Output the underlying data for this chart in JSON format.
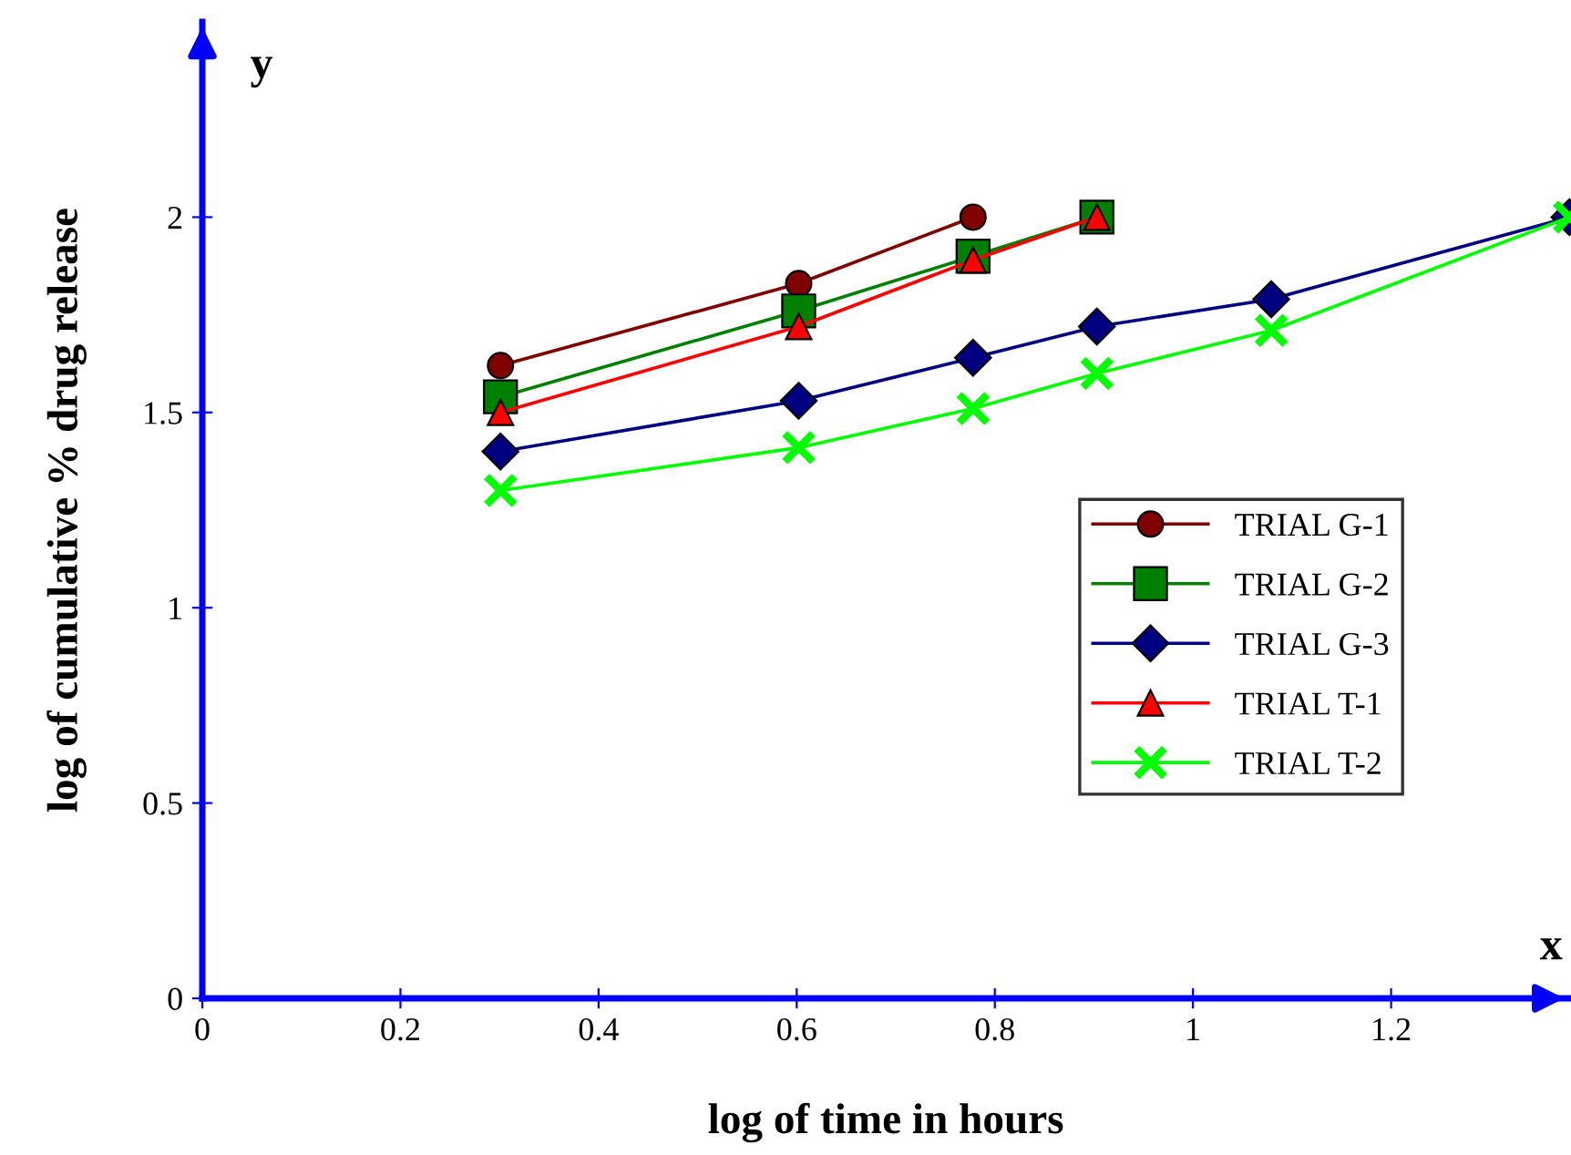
{
  "chart_data": {
    "type": "line",
    "xlabel": "log of time in hours",
    "ylabel": "log of cumulative % drug release",
    "annotations": [
      "y",
      "x"
    ],
    "xlim": [
      0,
      1.38
    ],
    "ylim": [
      0,
      2.5
    ],
    "xticks": [
      0,
      0.2,
      0.4,
      0.6,
      0.8,
      1,
      1.2
    ],
    "yticks": [
      0,
      0.5,
      1,
      1.5,
      2
    ],
    "grid": false,
    "legend": "right",
    "line_style": "solid",
    "series": [
      {
        "name": "TRIAL G-1",
        "color": "#800000",
        "marker": "circle",
        "x": [
          0.301,
          0.602,
          0.778
        ],
        "values": [
          1.62,
          1.83,
          2.0
        ]
      },
      {
        "name": "TRIAL G-2",
        "color": "#008000",
        "marker": "square",
        "x": [
          0.301,
          0.602,
          0.778,
          0.903
        ],
        "values": [
          1.54,
          1.76,
          1.9,
          2.0
        ]
      },
      {
        "name": "TRIAL G-3",
        "color": "#000080",
        "marker": "diamond",
        "x": [
          0.301,
          0.602,
          0.778,
          0.903,
          1.079,
          1.38
        ],
        "values": [
          1.4,
          1.53,
          1.64,
          1.72,
          1.79,
          2.0
        ]
      },
      {
        "name": "TRIAL T-1",
        "color": "#ff0000",
        "marker": "triangle",
        "x": [
          0.301,
          0.602,
          0.778,
          0.903
        ],
        "values": [
          1.5,
          1.72,
          1.89,
          2.0
        ]
      },
      {
        "name": "TRIAL T-2",
        "color": "#00ff00",
        "marker": "cross",
        "x": [
          0.301,
          0.602,
          0.778,
          0.903,
          1.079,
          1.38
        ],
        "values": [
          1.3,
          1.41,
          1.51,
          1.6,
          1.71,
          2.0
        ]
      }
    ]
  }
}
